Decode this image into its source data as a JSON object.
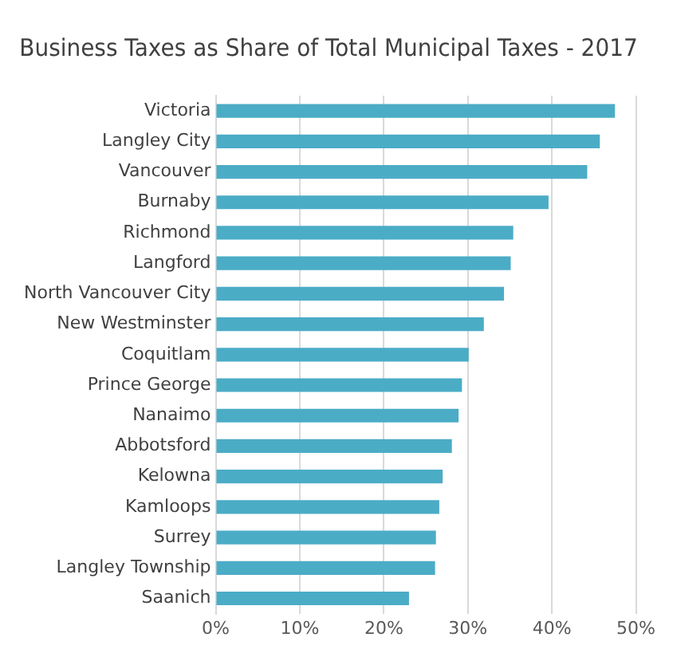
{
  "chart_data": {
    "type": "bar",
    "orientation": "horizontal",
    "title": "Business Taxes as Share of Total Municipal Taxes - 2017",
    "categories": [
      "Victoria",
      "Langley City",
      "Vancouver",
      "Burnaby",
      "Richmond",
      "Langford",
      "North Vancouver City",
      "New Westminster",
      "Coquitlam",
      "Prince George",
      "Nanaimo",
      "Abbotsford",
      "Kelowna",
      "Kamloops",
      "Surrey",
      "Langley Township",
      "Saanich"
    ],
    "values": [
      47.5,
      45.7,
      44.2,
      39.6,
      35.4,
      35.1,
      34.3,
      31.9,
      30.1,
      29.3,
      28.9,
      28.1,
      27.0,
      26.6,
      26.2,
      26.1,
      23.0
    ],
    "color": "#4bacc6",
    "xlim": [
      0,
      50
    ],
    "xticks": [
      {
        "value": 0,
        "label": "0%"
      },
      {
        "value": 10,
        "label": "10%"
      },
      {
        "value": 20,
        "label": "20%"
      },
      {
        "value": 30,
        "label": "30%"
      },
      {
        "value": 40,
        "label": "40%"
      },
      {
        "value": 50,
        "label": "50%"
      }
    ],
    "grid": "x"
  }
}
